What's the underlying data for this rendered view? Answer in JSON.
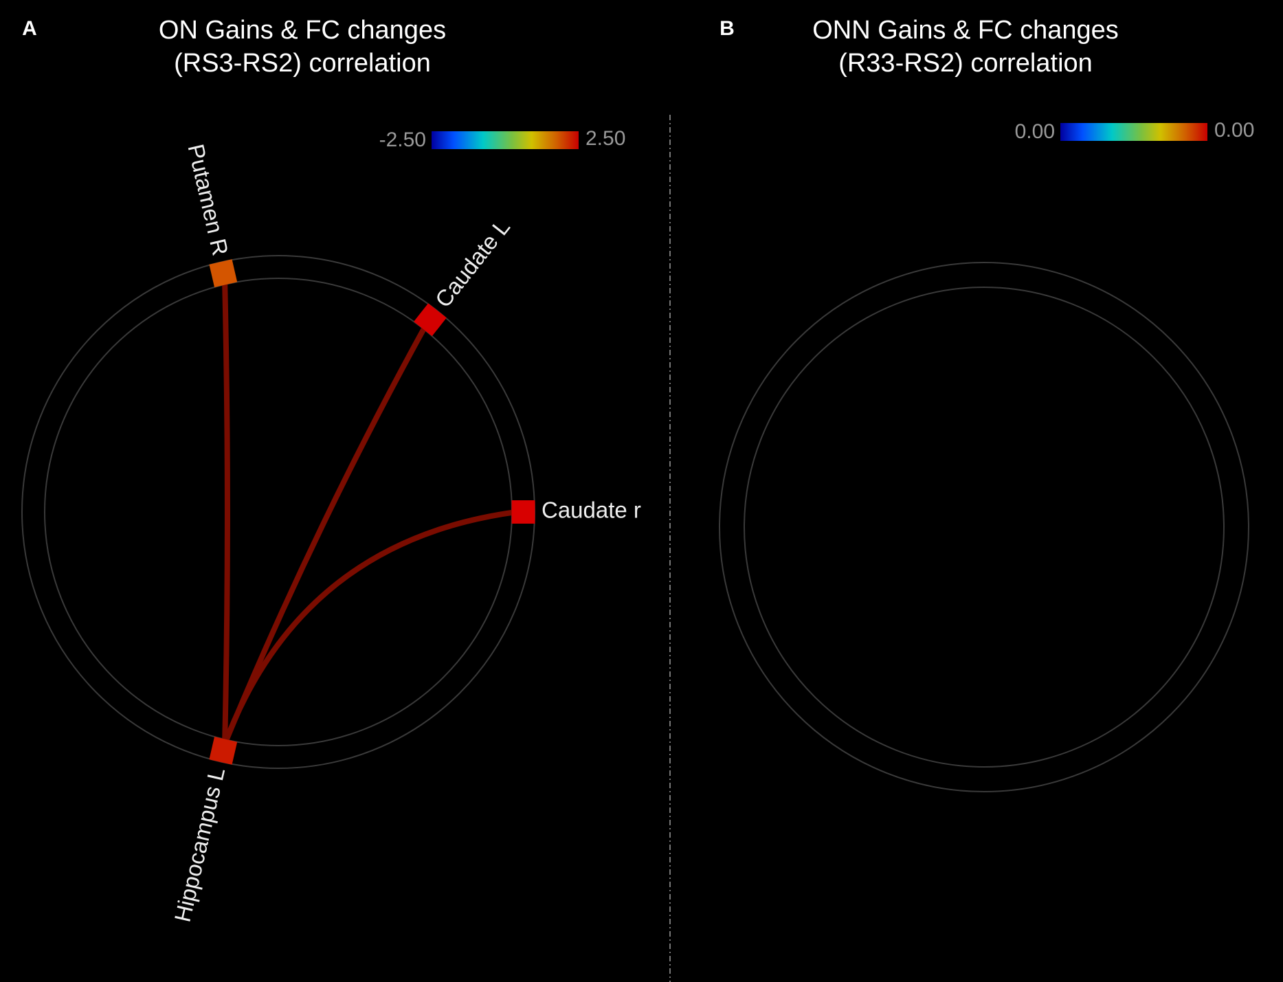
{
  "panels": [
    {
      "letter": "A",
      "title": [
        "ON Gains & FC changes",
        "(RS3-RS2) correlation"
      ],
      "colorbar": {
        "min_label": "-2.50",
        "max_label": "2.50"
      },
      "nodes": [
        {
          "label": "Putamen R",
          "color": "#d45500"
        },
        {
          "label": "Caudate L",
          "color": "#d40000"
        },
        {
          "label": "Caudate r",
          "color": "#d80000"
        },
        {
          "label": "Hippocampus L",
          "color": "#cc1a00"
        }
      ]
    },
    {
      "letter": "B",
      "title": [
        "ONN Gains & FC changes",
        "(R33-RS2) correlation"
      ],
      "colorbar": {
        "min_label": "0.00",
        "max_label": "0.00"
      },
      "nodes": []
    }
  ]
}
